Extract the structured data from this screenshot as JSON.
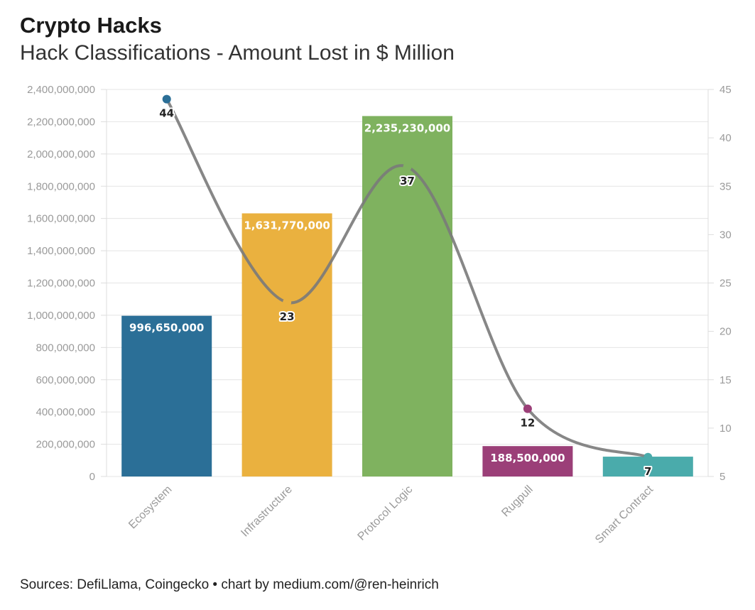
{
  "header": {
    "title": "Crypto Hacks",
    "subtitle": "Hack Classifications - Amount Lost in $ Million"
  },
  "footer": {
    "source": "Sources: DefiLlama, Coingecko • chart by medium.com/@ren-heinrich"
  },
  "chart_data": {
    "type": "bar",
    "categories": [
      "Ecosystem",
      "Infrastructure",
      "Protocol Logic",
      "Rugpull",
      "Smart Contract"
    ],
    "series": [
      {
        "type": "bar",
        "axis": "left",
        "values": [
          996650000,
          1631770000,
          2235230000,
          188500000,
          123000000
        ],
        "labels": [
          "996,650,000",
          "1,631,770,000",
          "2,235,230,000",
          "188,500,000",
          ""
        ],
        "colors": [
          "#2b6f97",
          "#eab13f",
          "#7fb25f",
          "#9b3f78",
          "#4aabab"
        ]
      },
      {
        "type": "line",
        "axis": "right",
        "values": [
          44,
          23,
          37,
          12,
          7
        ],
        "labels": [
          "44",
          "23",
          "37",
          "12",
          "7"
        ],
        "line_color": "#7a7a7a",
        "point_colors": [
          "#2b6f97",
          "#eab13f",
          "#7fb25f",
          "#9b3f78",
          "#4aabab"
        ]
      }
    ],
    "y_left": {
      "range": [
        0,
        2400000000
      ],
      "ticks": [
        0,
        200000000,
        400000000,
        600000000,
        800000000,
        1000000000,
        1200000000,
        1400000000,
        1600000000,
        1800000000,
        2000000000,
        2200000000,
        2400000000
      ],
      "tick_labels": [
        "0",
        "200,000,000",
        "400,000,000",
        "600,000,000",
        "800,000,000",
        "1,000,000,000",
        "1,200,000,000",
        "1,400,000,000",
        "1,600,000,000",
        "1,800,000,000",
        "2,000,000,000",
        "2,200,000,000",
        "2,400,000,000"
      ]
    },
    "y_right": {
      "range": [
        5,
        45
      ],
      "ticks": [
        5,
        10,
        15,
        20,
        25,
        30,
        35,
        40,
        45
      ],
      "tick_labels": [
        "5",
        "10",
        "15",
        "20",
        "25",
        "30",
        "35",
        "40",
        "45"
      ]
    },
    "grid": true,
    "legend": "none"
  }
}
